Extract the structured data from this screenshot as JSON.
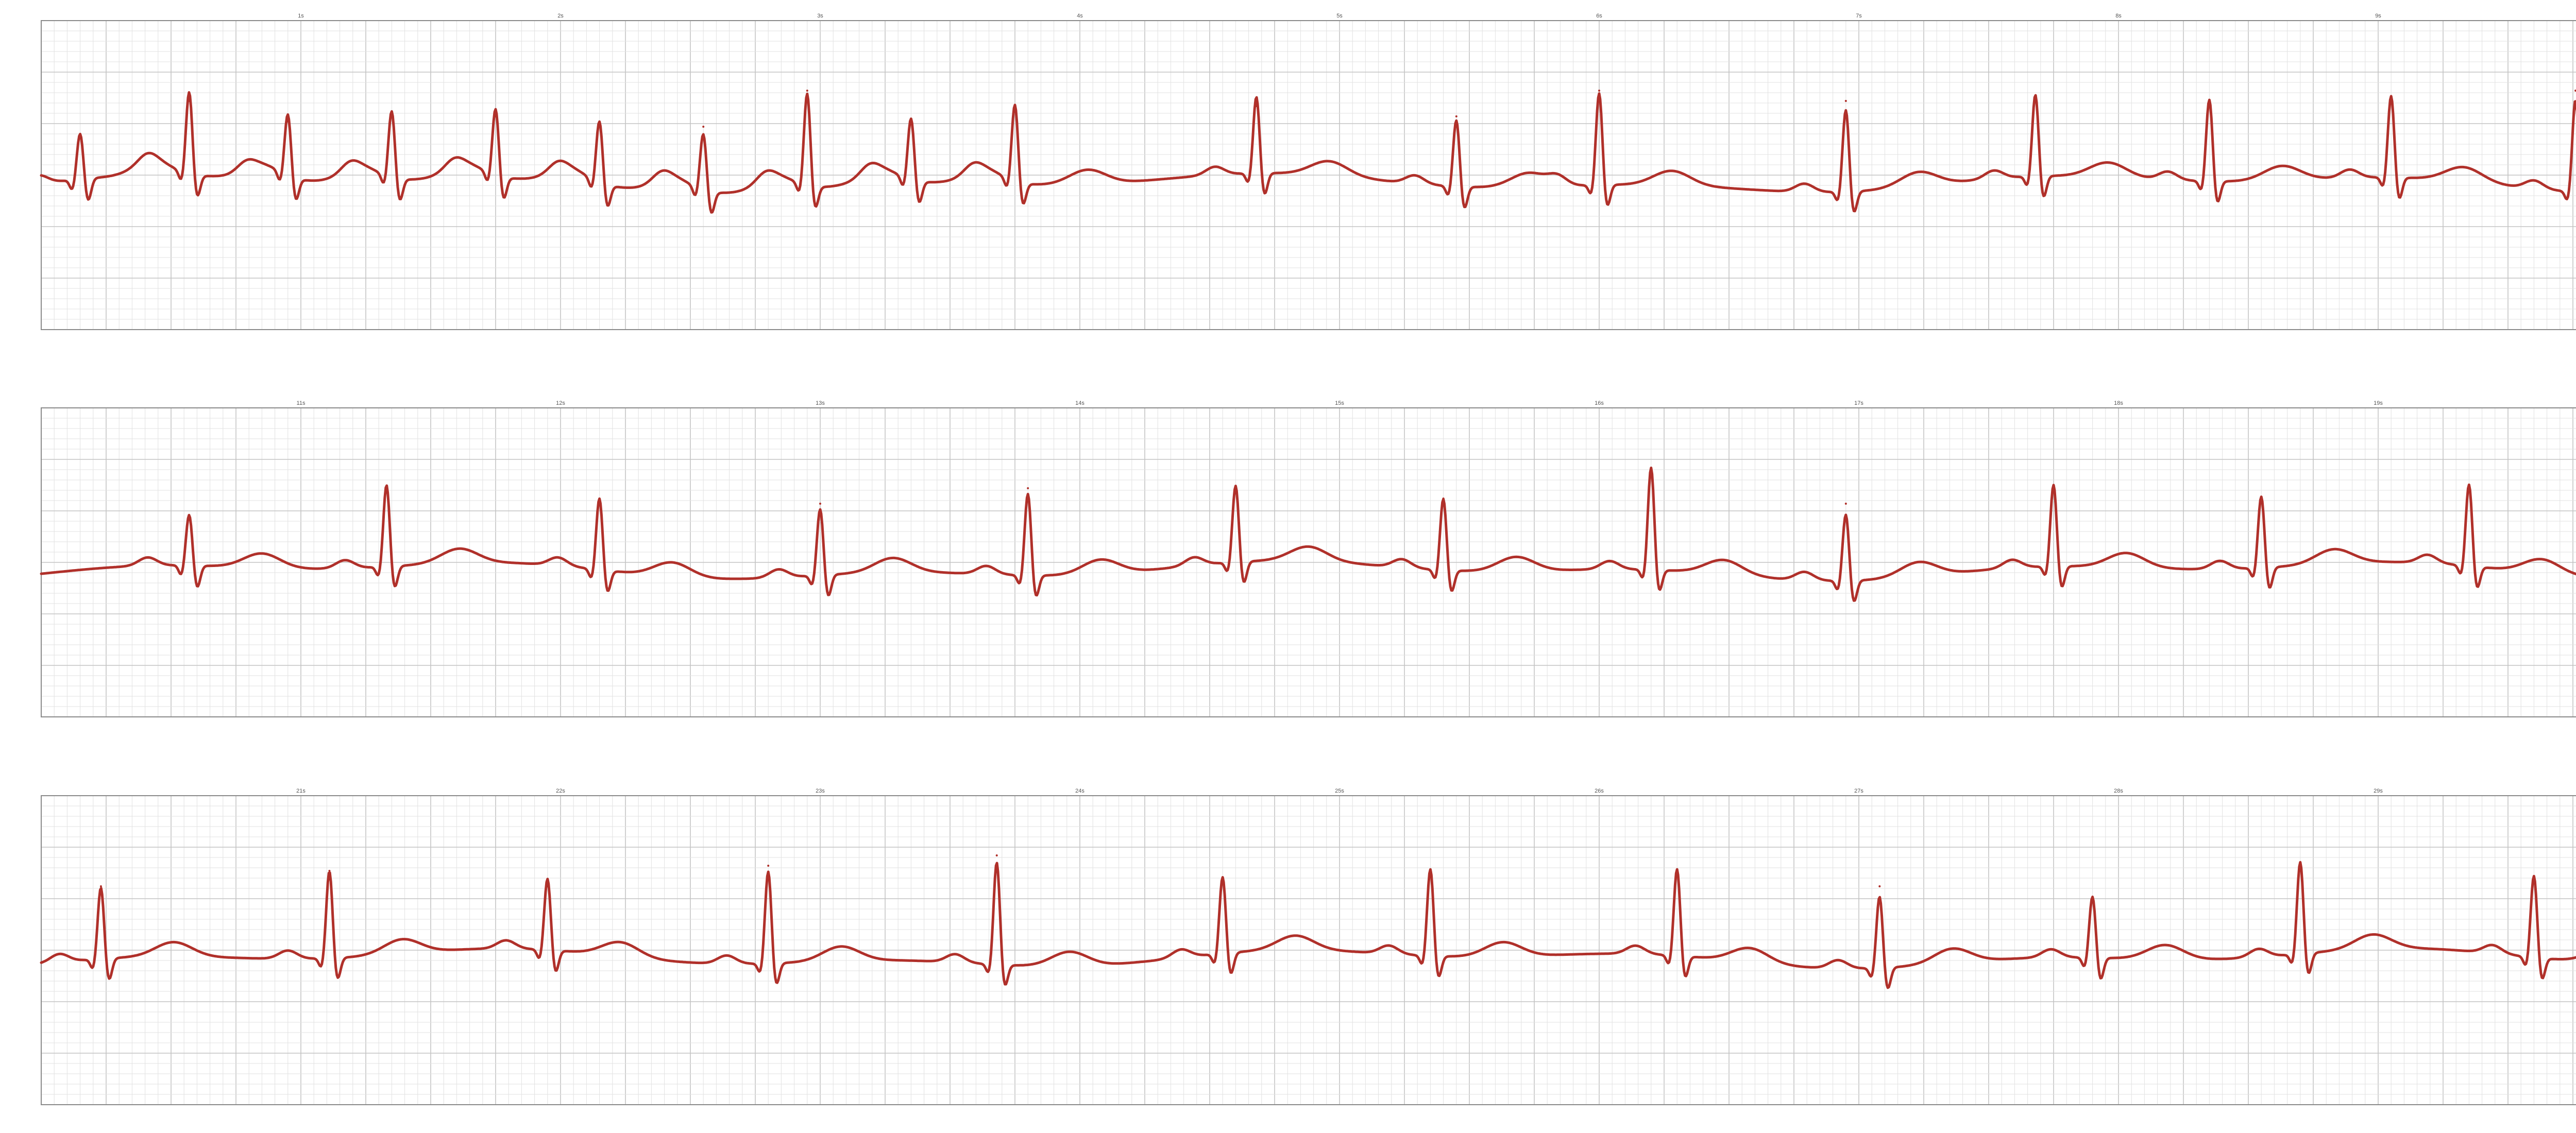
{
  "colors": {
    "background": "#ffffff",
    "grid_minor": "#e2e2e2",
    "grid_major": "#c4c4c4",
    "frame": "#8a8a8a",
    "trace": "#b0302a",
    "tick_text": "#555555"
  },
  "chart_data": [
    {
      "type": "line",
      "strip": 1,
      "x_unit": "s",
      "xlim": [
        0,
        10
      ],
      "ylim": [
        -1.5,
        1.5
      ],
      "grid": true,
      "legend": "none",
      "tick_values": [
        1,
        2,
        3,
        4,
        5,
        6,
        7,
        8,
        9
      ],
      "tick_labels": [
        "1s",
        "2s",
        "3s",
        "4s",
        "5s",
        "6s",
        "7s",
        "8s",
        "9s"
      ],
      "r_peaks_s": [
        0.15,
        0.57,
        0.95,
        1.35,
        1.75,
        2.15,
        2.55,
        2.95,
        3.35,
        3.75,
        4.68,
        5.45,
        6.0,
        6.95,
        7.68,
        8.35,
        9.05,
        9.76
      ],
      "r_amplitudes": [
        0.45,
        0.8,
        0.6,
        0.65,
        0.65,
        0.6,
        0.55,
        0.9,
        0.6,
        0.75,
        0.75,
        0.65,
        0.9,
        0.8,
        0.8,
        0.8,
        0.8,
        0.9
      ]
    },
    {
      "type": "line",
      "strip": 2,
      "x_unit": "s",
      "xlim": [
        10,
        20
      ],
      "ylim": [
        -1.5,
        1.5
      ],
      "grid": true,
      "legend": "none",
      "tick_values": [
        11,
        12,
        13,
        14,
        15,
        16,
        17,
        18,
        19
      ],
      "tick_labels": [
        "11s",
        "12s",
        "13s",
        "14s",
        "15s",
        "16s",
        "17s",
        "18s",
        "19s"
      ],
      "r_peaks_s": [
        10.57,
        11.33,
        12.15,
        13.0,
        13.8,
        14.6,
        15.4,
        16.2,
        16.95,
        17.75,
        18.55,
        19.35
      ],
      "r_amplitudes": [
        0.5,
        0.8,
        0.7,
        0.65,
        0.8,
        0.75,
        0.7,
        1.0,
        0.65,
        0.8,
        0.7,
        0.8
      ]
    },
    {
      "type": "line",
      "strip": 3,
      "x_unit": "s",
      "xlim": [
        20,
        30
      ],
      "ylim": [
        -1.5,
        1.5
      ],
      "grid": true,
      "legend": "none",
      "tick_values": [
        21,
        22,
        23,
        24,
        25,
        26,
        27,
        28,
        29
      ],
      "tick_labels": [
        "21s",
        "22s",
        "23s",
        "24s",
        "25s",
        "26s",
        "27s",
        "28s",
        "29s"
      ],
      "r_peaks_s": [
        20.23,
        21.11,
        21.95,
        22.8,
        23.68,
        24.55,
        25.35,
        26.3,
        27.08,
        27.9,
        28.7,
        29.6
      ],
      "r_amplitudes": [
        0.7,
        0.85,
        0.7,
        0.9,
        1.0,
        0.75,
        0.85,
        0.85,
        0.7,
        0.6,
        0.9,
        0.8
      ]
    }
  ]
}
